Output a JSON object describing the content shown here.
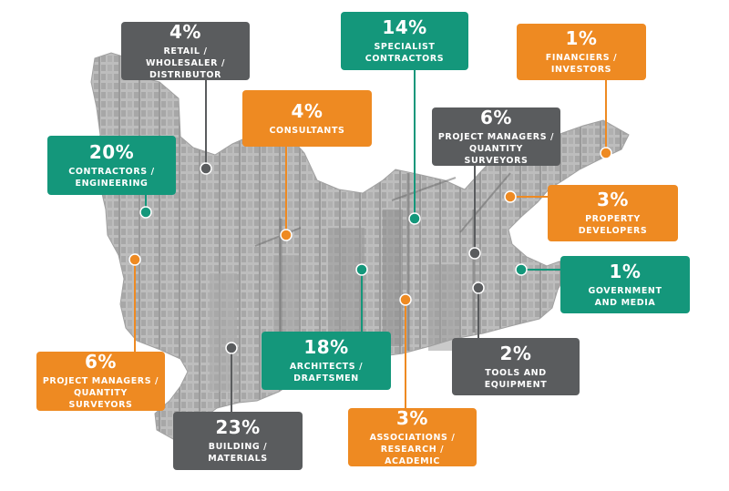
{
  "colors": {
    "teal": "#14977b",
    "orange": "#ee8a22",
    "gray": "#5a5c5e",
    "map_fill": "#b9b9b9",
    "map_dark": "#8f8f8f"
  },
  "segments": [
    {
      "id": "retail",
      "percent": "4%",
      "lines": [
        "RETAIL / WHOLESALER /",
        "DISTRIBUTOR"
      ],
      "color": "gray"
    },
    {
      "id": "specialist",
      "percent": "14%",
      "lines": [
        "SPECIALIST",
        "CONTRACTORS"
      ],
      "color": "teal"
    },
    {
      "id": "financiers",
      "percent": "1%",
      "lines": [
        "FINANCIERS / INVESTORS"
      ],
      "color": "orange"
    },
    {
      "id": "consultants",
      "percent": "4%",
      "lines": [
        "CONSULTANTS"
      ],
      "color": "orange"
    },
    {
      "id": "contractors",
      "percent": "20%",
      "lines": [
        "CONTRACTORS /",
        "ENGINEERING"
      ],
      "color": "teal"
    },
    {
      "id": "pm-right",
      "percent": "6%",
      "lines": [
        "PROJECT MANAGERS /",
        "QUANTITY SURVEYORS"
      ],
      "color": "gray"
    },
    {
      "id": "developers",
      "percent": "3%",
      "lines": [
        "PROPERTY DEVELOPERS"
      ],
      "color": "orange"
    },
    {
      "id": "government",
      "percent": "1%",
      "lines": [
        "GOVERNMENT",
        "AND MEDIA"
      ],
      "color": "teal"
    },
    {
      "id": "tools",
      "percent": "2%",
      "lines": [
        "TOOLS AND EQUIPMENT"
      ],
      "color": "gray"
    },
    {
      "id": "architects",
      "percent": "18%",
      "lines": [
        "ARCHITECTS /",
        "DRAFTSMEN"
      ],
      "color": "teal"
    },
    {
      "id": "associations",
      "percent": "3%",
      "lines": [
        "ASSOCIATIONS /",
        "RESEARCH / ACADEMIC"
      ],
      "color": "orange"
    },
    {
      "id": "building",
      "percent": "23%",
      "lines": [
        "BUILDING / MATERIALS"
      ],
      "color": "gray"
    },
    {
      "id": "pm-left",
      "percent": "6%",
      "lines": [
        "PROJECT MANAGERS /",
        "QUANTITY SURVEYORS"
      ],
      "color": "orange"
    }
  ]
}
